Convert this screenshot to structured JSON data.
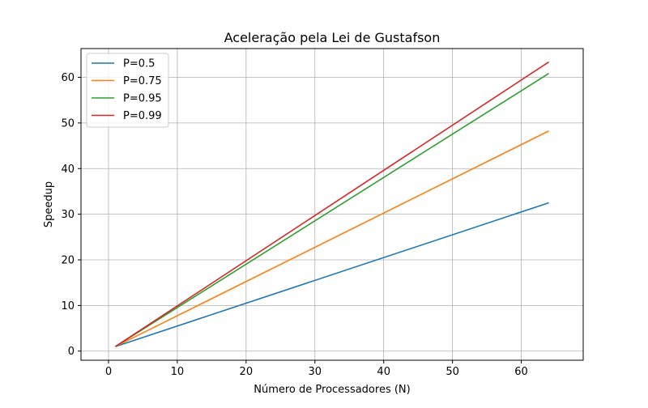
{
  "chart_data": {
    "type": "line",
    "title": "Aceleração pela Lei de Gustafson",
    "xlabel": "Número de Processadores (N)",
    "ylabel": "Speedup",
    "xlim": [
      -4.0,
      69.0
    ],
    "ylim": [
      -2.0,
      66.3
    ],
    "xticks": [
      0,
      10,
      20,
      30,
      40,
      50,
      60
    ],
    "yticks": [
      0,
      10,
      20,
      30,
      40,
      50,
      60
    ],
    "grid": true,
    "legend_position": "top-left",
    "series": [
      {
        "name": "P=0.5",
        "color": "#1f77b4",
        "x": [
          1,
          64
        ],
        "y": [
          1.0,
          32.5
        ]
      },
      {
        "name": "P=0.75",
        "color": "#ff7f0e",
        "x": [
          1,
          64
        ],
        "y": [
          1.0,
          48.25
        ]
      },
      {
        "name": "P=0.95",
        "color": "#2ca02c",
        "x": [
          1,
          64
        ],
        "y": [
          1.0,
          60.85
        ]
      },
      {
        "name": "P=0.99",
        "color": "#d62728",
        "x": [
          1,
          64
        ],
        "y": [
          1.0,
          63.37
        ]
      }
    ]
  }
}
